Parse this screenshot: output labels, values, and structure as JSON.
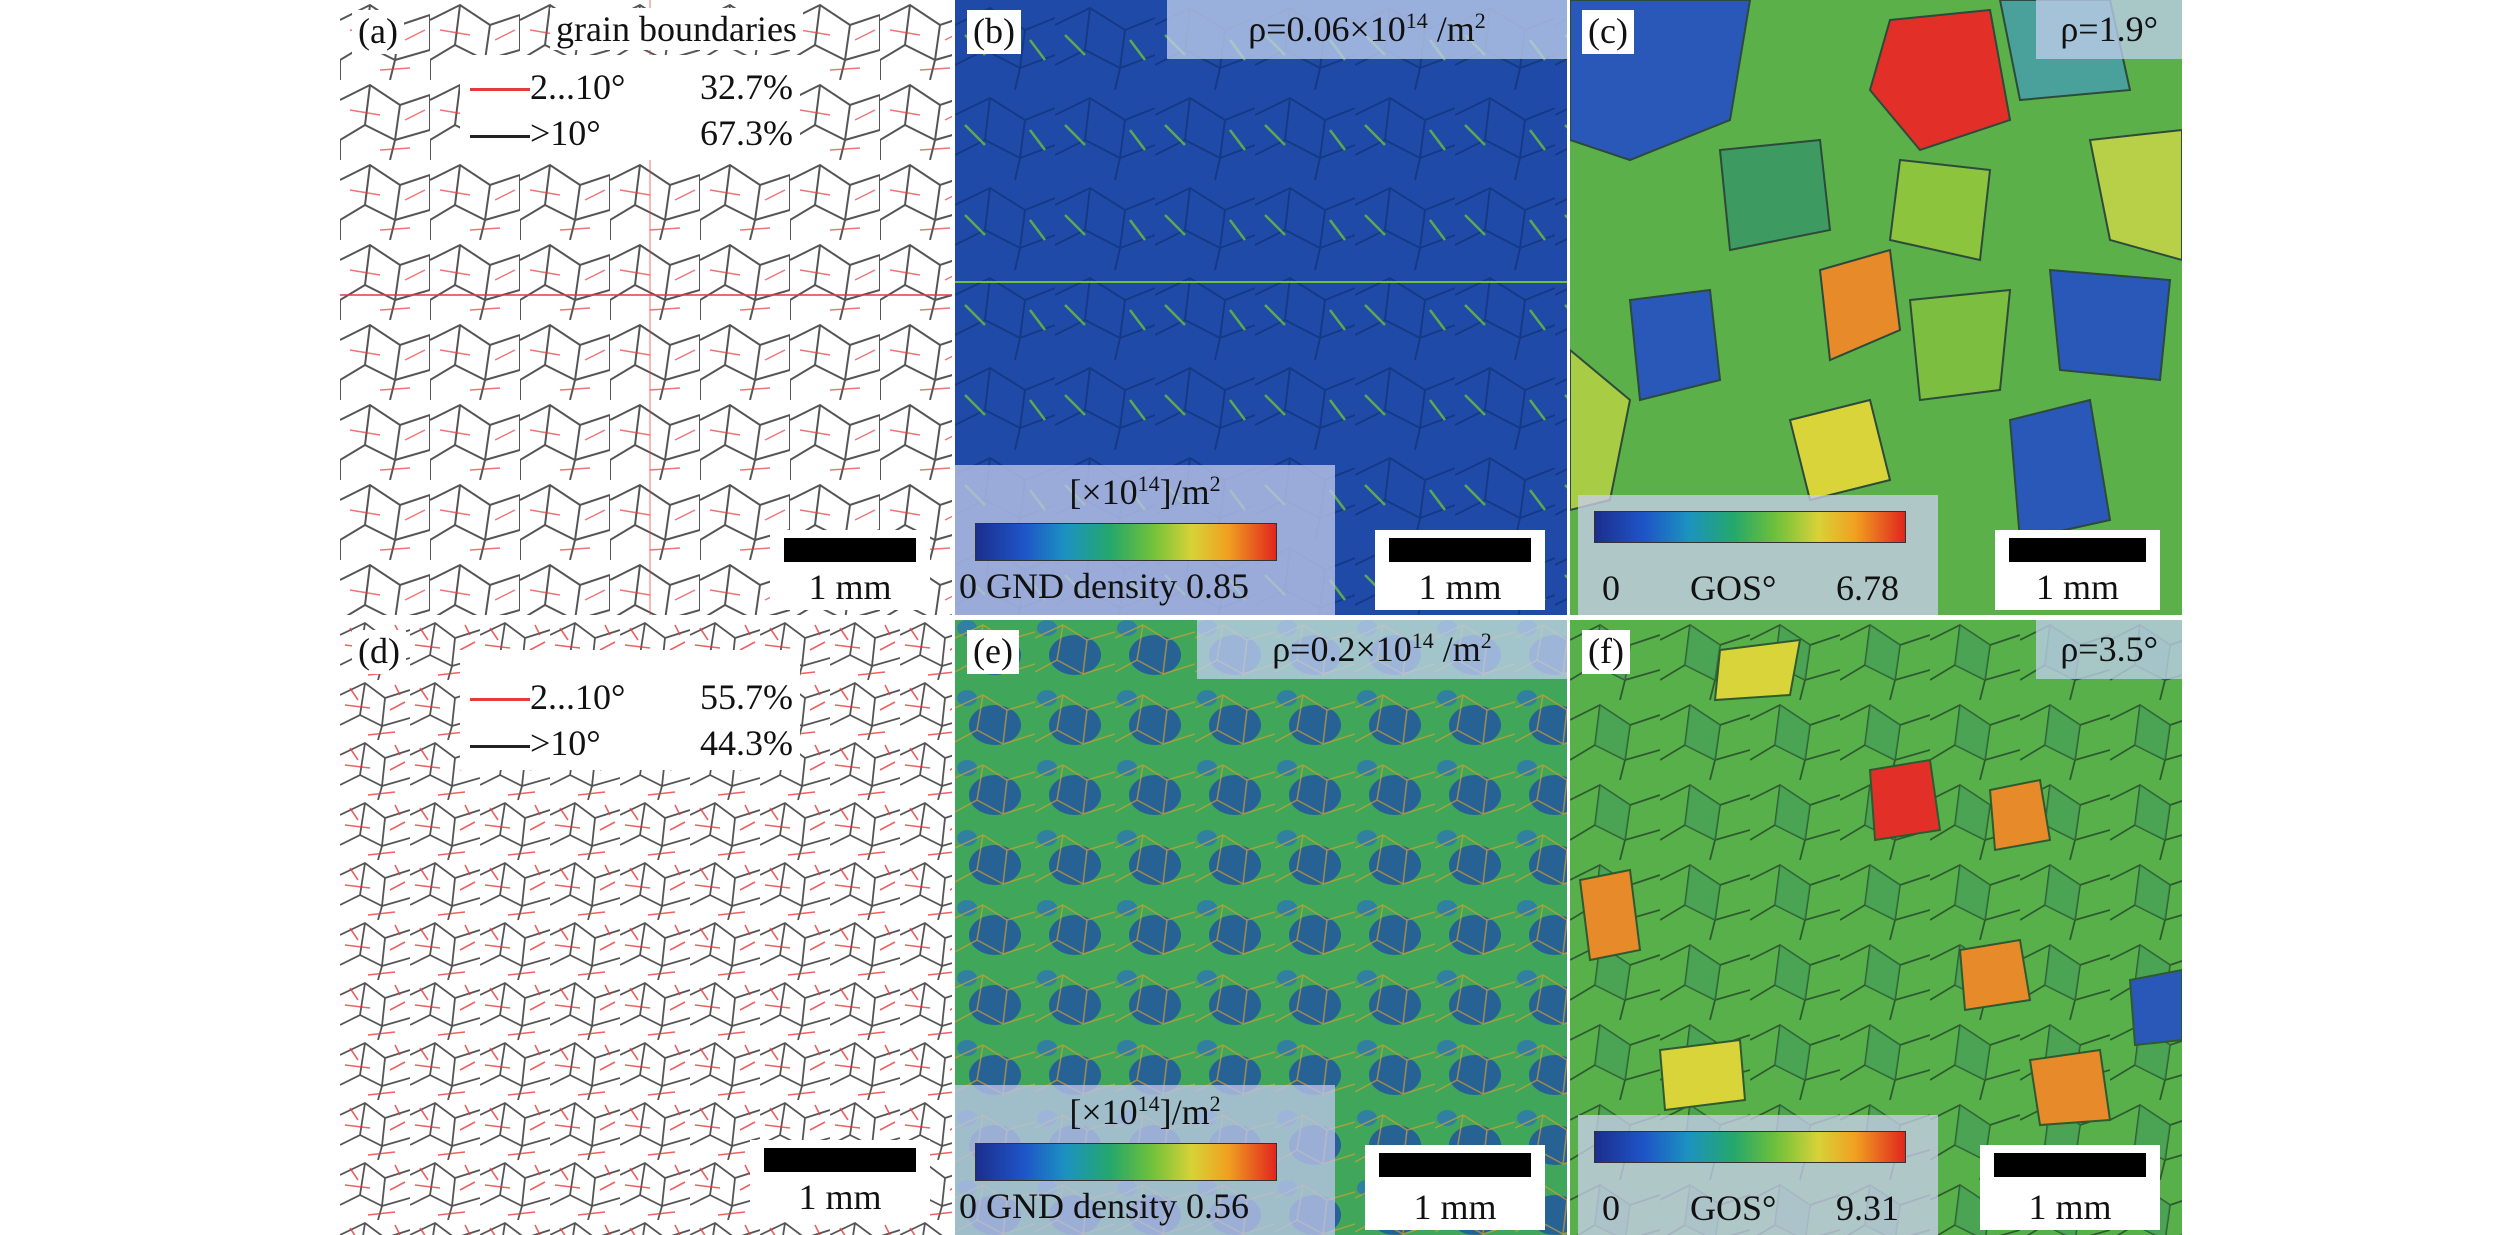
{
  "panels": {
    "a": {
      "label": "(a)",
      "legend_title": "grain boundaries",
      "rows": [
        {
          "name": "2...10°",
          "percent": "32.7%",
          "color": "#e8393a"
        },
        {
          "name": ">10°",
          "percent": "67.3%",
          "color": "#222222"
        }
      ],
      "scale": "1 mm"
    },
    "b": {
      "label": "(b)",
      "rho_prefix": "ρ=0.06×10",
      "rho_exp": "14",
      "rho_suffix": " /m",
      "rho_sup": "2",
      "unit_prefix": "[×10",
      "unit_exp": "14",
      "unit_suffix": "]/m",
      "unit_sup": "2",
      "cbar_label": "0 GND density 0.85",
      "scale": "1 mm"
    },
    "c": {
      "label": "(c)",
      "rho": "ρ=1.9°",
      "gos_min": "0",
      "gos_name": "GOS°",
      "gos_max": "6.78",
      "scale": "1 mm"
    },
    "d": {
      "label": "(d)",
      "rows": [
        {
          "name": "2...10°",
          "percent": "55.7%",
          "color": "#e8393a"
        },
        {
          "name": ">10°",
          "percent": "44.3%",
          "color": "#222222"
        }
      ],
      "scale": "1 mm"
    },
    "e": {
      "label": "(e)",
      "rho_prefix": "ρ=0.2×10",
      "rho_exp": "14",
      "rho_suffix": " /m",
      "rho_sup": "2",
      "unit_prefix": "[×10",
      "unit_exp": "14",
      "unit_suffix": "]/m",
      "unit_sup": "2",
      "cbar_label": "0 GND density 0.56",
      "scale": "1 mm"
    },
    "f": {
      "label": "(f)",
      "rho": "ρ=3.5°",
      "gos_min": "0",
      "gos_name": "GOS°",
      "gos_max": "9.31",
      "scale": "1 mm"
    }
  },
  "colors": {
    "gnd_low": "#1f4aa8",
    "gos_low": "#2a58b8",
    "gos_mid": "#5bb04a",
    "gos_high": "#e23028",
    "lagb_red": "#e8393a"
  }
}
